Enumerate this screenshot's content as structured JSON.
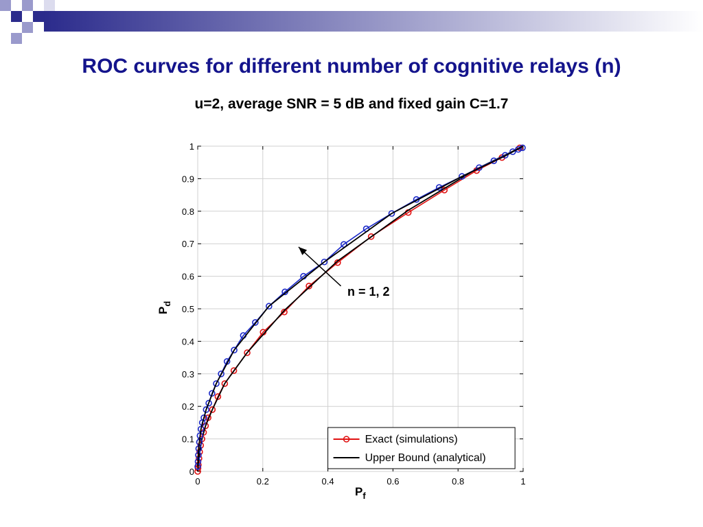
{
  "slide": {
    "title": "ROC curves for different number of cognitive relays (n)",
    "subtitle": "u=2, average SNR = 5 dB and fixed gain C=1.7",
    "accent_color": "#14148c",
    "decor_square_colors": [
      "#2b2b8c",
      "#9a9acc"
    ]
  },
  "chart_data": {
    "type": "line",
    "xlabel_main": "P",
    "xlabel_sub": "f",
    "ylabel_main": "P",
    "ylabel_sub": "d",
    "xlim": [
      0,
      1
    ],
    "ylim": [
      0,
      1
    ],
    "x_ticks": [
      "0",
      "0.2",
      "0.4",
      "0.6",
      "0.8",
      "1"
    ],
    "y_ticks": [
      "0",
      "0.1",
      "0.2",
      "0.3",
      "0.4",
      "0.5",
      "0.6",
      "0.7",
      "0.8",
      "0.9",
      "1"
    ],
    "grid": true,
    "legend_position": "bottom-right",
    "annotation": "n = 1, 2",
    "legend": [
      {
        "label": "Exact (simulations)",
        "color": "#e01010",
        "marker": "circle"
      },
      {
        "label": "Upper Bound (analytical)",
        "color": "#000000",
        "marker": "none"
      }
    ],
    "series": [
      {
        "color": "#e01010",
        "marker": "circle",
        "curve_group": "lower",
        "x": [
          0.0,
          0.001,
          0.002,
          0.004,
          0.006,
          0.009,
          0.013,
          0.018,
          0.024,
          0.032,
          0.045,
          0.062,
          0.083,
          0.111,
          0.152,
          0.201,
          0.266,
          0.342,
          0.43,
          0.533,
          0.647,
          0.758,
          0.857,
          0.935,
          0.99
        ],
        "y": [
          0.0,
          0.01,
          0.02,
          0.04,
          0.06,
          0.08,
          0.1,
          0.12,
          0.14,
          0.165,
          0.19,
          0.23,
          0.27,
          0.31,
          0.365,
          0.428,
          0.49,
          0.57,
          0.642,
          0.722,
          0.796,
          0.865,
          0.925,
          0.965,
          0.995
        ]
      },
      {
        "color": "#000000",
        "marker": "none",
        "curve_group": "lower",
        "x": [
          0.0,
          0.002,
          0.006,
          0.013,
          0.024,
          0.045,
          0.083,
          0.152,
          0.266,
          0.43,
          0.647,
          0.857,
          1.0
        ],
        "y": [
          0.0,
          0.02,
          0.06,
          0.1,
          0.14,
          0.19,
          0.27,
          0.365,
          0.495,
          0.647,
          0.803,
          0.93,
          1.0
        ]
      },
      {
        "color": "#1a28c8",
        "marker": "circle",
        "curve_group": "upper",
        "x": [
          0.0,
          0.001,
          0.002,
          0.003,
          0.005,
          0.007,
          0.01,
          0.014,
          0.019,
          0.026,
          0.034,
          0.044,
          0.057,
          0.072,
          0.09,
          0.112,
          0.14,
          0.177,
          0.219,
          0.268,
          0.325,
          0.389,
          0.449,
          0.518,
          0.596,
          0.672,
          0.742,
          0.812,
          0.865,
          0.91,
          0.945,
          0.968,
          0.985,
          0.998
        ],
        "y": [
          0.015,
          0.03,
          0.05,
          0.07,
          0.09,
          0.11,
          0.13,
          0.15,
          0.165,
          0.19,
          0.21,
          0.24,
          0.27,
          0.3,
          0.338,
          0.373,
          0.418,
          0.458,
          0.508,
          0.552,
          0.6,
          0.644,
          0.698,
          0.746,
          0.793,
          0.836,
          0.873,
          0.907,
          0.934,
          0.955,
          0.972,
          0.983,
          0.99,
          0.995
        ]
      },
      {
        "color": "#000000",
        "marker": "none",
        "curve_group": "upper",
        "x": [
          0.0,
          0.003,
          0.01,
          0.026,
          0.057,
          0.112,
          0.219,
          0.389,
          0.596,
          0.812,
          0.945,
          1.0
        ],
        "y": [
          0.015,
          0.07,
          0.13,
          0.19,
          0.27,
          0.373,
          0.508,
          0.644,
          0.793,
          0.907,
          0.97,
          1.0
        ]
      }
    ]
  }
}
